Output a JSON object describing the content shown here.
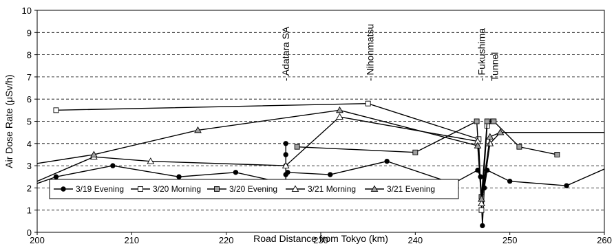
{
  "chart_data": {
    "type": "line",
    "title": "",
    "xlabel": "Road Distance from Tokyo (km)",
    "ylabel": "Air Dose Rate (μSv/h)",
    "xlim": [
      200,
      260
    ],
    "ylim": [
      0,
      10
    ],
    "xticks": [
      200,
      210,
      220,
      230,
      240,
      250,
      260
    ],
    "yticks": [
      0,
      1,
      2,
      3,
      4,
      5,
      6,
      7,
      8,
      9,
      10
    ],
    "grid": "horizontal dashed",
    "legend_position": "bottom-left",
    "annotations": [
      {
        "text": "- Adatara SA",
        "x": 226.3
      },
      {
        "text": "- Nihonmatsu",
        "x": 235.2
      },
      {
        "text": "- Fukushima",
        "x": 247.0
      },
      {
        "text": "Tunnel",
        "x": 248.4
      }
    ],
    "series": [
      {
        "name": "3/19 Evening",
        "marker": "filled-circle",
        "points": [
          [
            200,
            2.2
          ],
          [
            202,
            2.5
          ],
          [
            208,
            3.0
          ],
          [
            215,
            2.5
          ],
          [
            221,
            2.7
          ],
          [
            226.3,
            2.2
          ],
          [
            226.3,
            4.0
          ],
          [
            226.3,
            3.5
          ],
          [
            226.3,
            3.0
          ],
          [
            226.3,
            2.6
          ],
          [
            226.5,
            2.7
          ],
          [
            231,
            2.6
          ],
          [
            237,
            3.2
          ],
          [
            244,
            2.2
          ],
          [
            246.6,
            2.8
          ],
          [
            246.9,
            2.5
          ],
          [
            247.1,
            0.3
          ],
          [
            247.3,
            2.0
          ],
          [
            247.6,
            2.8
          ],
          [
            250,
            2.3
          ],
          [
            256,
            2.1
          ],
          [
            260,
            2.85
          ]
        ]
      },
      {
        "name": "3/20 Morning",
        "marker": "open-square",
        "points": [
          [
            202,
            5.5
          ],
          [
            235,
            5.8
          ],
          [
            246.7,
            4.2
          ],
          [
            247.0,
            1.0
          ],
          [
            247.6,
            4.8
          ],
          [
            248.2,
            5.0
          ]
        ]
      },
      {
        "name": "3/20 Evening",
        "marker": "gray-square",
        "points": [
          [
            227.5,
            3.85
          ],
          [
            240,
            3.6
          ],
          [
            246.5,
            5.0
          ],
          [
            247.0,
            1.6
          ],
          [
            247.6,
            5.0
          ],
          [
            248.3,
            5.0
          ],
          [
            251,
            3.85
          ],
          [
            255,
            3.5
          ]
        ]
      },
      {
        "name": "3/21 Morning",
        "marker": "open-triangle",
        "points": [
          [
            200,
            2.3
          ],
          [
            206,
            3.4
          ],
          [
            212,
            3.2
          ],
          [
            226.3,
            3.0
          ],
          [
            232,
            5.2
          ],
          [
            246.6,
            4.1
          ],
          [
            247.0,
            1.3
          ],
          [
            247.9,
            4.0
          ],
          [
            249,
            4.5
          ],
          [
            260,
            4.5
          ]
        ]
      },
      {
        "name": "3/21 Evening",
        "marker": "gray-triangle",
        "points": [
          [
            200,
            3.1
          ],
          [
            206,
            3.5
          ],
          [
            217,
            4.6
          ],
          [
            232,
            5.5
          ],
          [
            246.6,
            3.9
          ],
          [
            247.0,
            1.5
          ],
          [
            247.9,
            4.3
          ],
          [
            249,
            4.5
          ]
        ]
      }
    ]
  },
  "colors": {
    "line": "#000000",
    "gray_fill": "#a0a0a0",
    "open_fill": "#ffffff",
    "grid": "#000000"
  }
}
